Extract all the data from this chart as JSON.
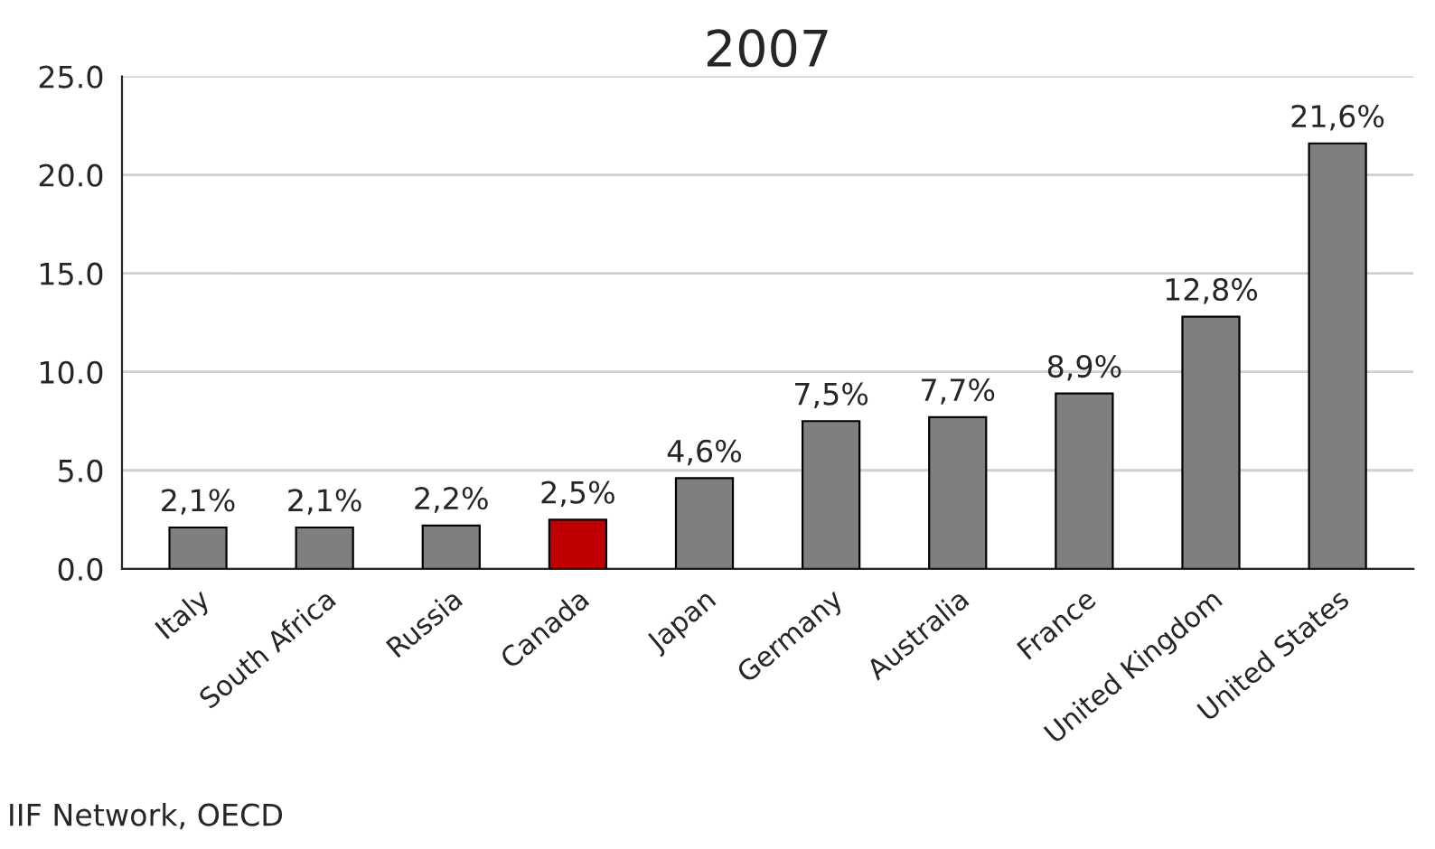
{
  "chart_data": {
    "type": "bar",
    "title": "2007",
    "categories": [
      "Italy",
      "South Africa",
      "Russia",
      "Canada",
      "Japan",
      "Germany",
      "Australia",
      "France",
      "United Kingdom",
      "United States"
    ],
    "values": [
      2.1,
      2.1,
      2.2,
      2.5,
      4.6,
      7.5,
      7.7,
      8.9,
      12.8,
      21.6
    ],
    "colors": [
      "#7f7f7f",
      "#7f7f7f",
      "#7f7f7f",
      "#c00000",
      "#7f7f7f",
      "#7f7f7f",
      "#7f7f7f",
      "#7f7f7f",
      "#7f7f7f",
      "#7f7f7f"
    ],
    "value_labels": [
      "2,1%",
      "2,1%",
      "2,2%",
      "2,5%",
      "4,6%",
      "7,5%",
      "7,7%",
      "8,9%",
      "12,8%",
      "21,6%"
    ],
    "ylim": [
      0,
      25
    ],
    "yticks": [
      {
        "value": 0,
        "label": "0.0"
      },
      {
        "value": 5,
        "label": "5.0"
      },
      {
        "value": 10,
        "label": "10.0"
      },
      {
        "value": 15,
        "label": "15.0"
      },
      {
        "value": 20,
        "label": "20.0"
      },
      {
        "value": 25,
        "label": "25.0"
      }
    ],
    "grid": "y",
    "annotations": [
      "IIF Network, OECD"
    ]
  }
}
